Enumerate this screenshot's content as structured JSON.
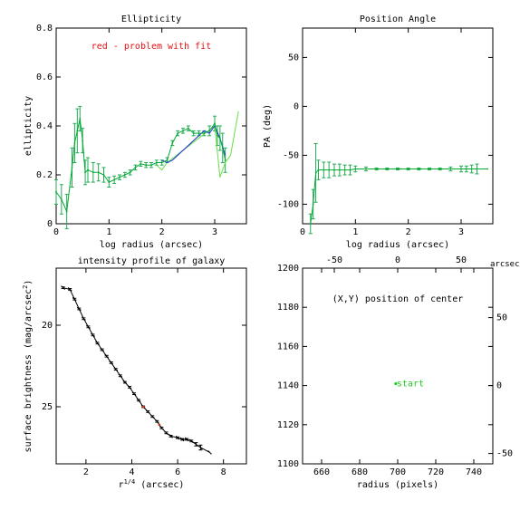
{
  "chart_data": [
    {
      "type": "line",
      "title": "Ellipticity",
      "xlabel": "log radius (arcsec)",
      "ylabel": "ellipticity",
      "xlim": [
        0,
        3.6
      ],
      "ylim": [
        0,
        0.8
      ],
      "x_ticks": [
        "0",
        "1",
        "2",
        "3"
      ],
      "y_ticks": [
        "0",
        "0.2",
        "0.4",
        "0.6",
        "0.8"
      ],
      "annotation": "red - problem with fit",
      "colors": {
        "fit": "#00aa33",
        "alt": "#2233dd",
        "extra": "#66e044",
        "problem": "#e01010",
        "error": "#22aa55"
      },
      "series": [
        {
          "x": [
            0.0,
            0.1,
            0.2,
            0.3,
            0.35,
            0.4,
            0.45,
            0.5,
            0.55,
            0.6,
            0.7,
            0.8,
            0.9,
            1.0,
            1.1,
            1.2,
            1.3,
            1.4,
            1.5,
            1.6,
            1.7,
            1.8,
            1.9,
            2.0,
            2.1,
            2.2,
            2.3,
            2.4,
            2.5,
            2.6,
            2.7,
            2.8,
            2.9,
            3.0,
            3.05,
            3.1,
            3.15,
            3.2
          ],
          "y": [
            0.13,
            0.1,
            0.05,
            0.23,
            0.33,
            0.38,
            0.43,
            0.34,
            0.21,
            0.22,
            0.21,
            0.21,
            0.2,
            0.17,
            0.18,
            0.19,
            0.2,
            0.21,
            0.23,
            0.245,
            0.24,
            0.24,
            0.25,
            0.25,
            0.26,
            0.33,
            0.37,
            0.38,
            0.39,
            0.37,
            0.37,
            0.37,
            0.38,
            0.41,
            0.36,
            0.35,
            0.31,
            0.26
          ],
          "err": [
            0.05,
            0.06,
            0.07,
            0.08,
            0.08,
            0.09,
            0.05,
            0.05,
            0.05,
            0.05,
            0.04,
            0.035,
            0.03,
            0.02,
            0.015,
            0.01,
            0.01,
            0.01,
            0.01,
            0.01,
            0.01,
            0.01,
            0.01,
            0.01,
            0.01,
            0.01,
            0.01,
            0.01,
            0.01,
            0.01,
            0.01,
            0.01,
            0.02,
            0.03,
            0.04,
            0.05,
            0.06,
            0.05
          ]
        },
        {
          "x": [
            2.0,
            2.1,
            2.2,
            2.8,
            2.9,
            3.0,
            3.1,
            3.2
          ],
          "y": [
            0.26,
            0.25,
            0.26,
            0.38,
            0.37,
            0.4,
            0.35,
            0.28
          ]
        },
        {
          "x": [
            1.9,
            2.0,
            2.1,
            3.0,
            3.1,
            3.2,
            3.3,
            3.45
          ],
          "y": [
            0.24,
            0.22,
            0.25,
            0.4,
            0.19,
            0.25,
            0.28,
            0.46
          ]
        }
      ]
    },
    {
      "type": "line",
      "title": "Position Angle",
      "xlabel": "log radius (arcsec)",
      "ylabel": "PA (deg)",
      "xlim": [
        0,
        3.6
      ],
      "ylim": [
        -120,
        80
      ],
      "x_ticks": [
        "0",
        "1",
        "2",
        "3"
      ],
      "y_ticks": [
        "-100",
        "-50",
        "0",
        "50"
      ],
      "series": [
        {
          "x": [
            0.15,
            0.2,
            0.25,
            0.3,
            0.4,
            0.5,
            0.6,
            0.7,
            0.8,
            0.9,
            1.0,
            1.2,
            1.4,
            1.6,
            1.8,
            2.0,
            2.2,
            2.4,
            2.6,
            2.8,
            3.0,
            3.1,
            3.2,
            3.3,
            3.5
          ],
          "y": [
            -120,
            -100,
            -68,
            -65,
            -65,
            -65,
            -65,
            -65,
            -65,
            -65,
            -64,
            -64,
            -64,
            -64,
            -64,
            -64,
            -64,
            -64,
            -64,
            -64,
            -64,
            -64,
            -64,
            -64,
            -64
          ],
          "err": [
            10,
            15,
            30,
            10,
            8,
            8,
            6,
            6,
            5,
            5,
            3,
            2,
            1,
            1,
            1,
            1,
            1,
            1,
            1,
            2,
            3,
            3,
            4,
            5,
            0
          ]
        }
      ]
    },
    {
      "type": "line",
      "title": "intensity profile of galaxy",
      "xlabel": "r^{1/4} (arcsec)",
      "ylabel": "surface brightness (mag/arcsec²)",
      "xlim": [
        0.7,
        9
      ],
      "ylim": [
        28.5,
        16.5
      ],
      "x_ticks": [
        "2",
        "4",
        "6",
        "8"
      ],
      "y_ticks": [
        "20",
        "25"
      ],
      "colors": {
        "fit": "#000000",
        "problem": "#cc3300"
      },
      "series": [
        {
          "x": [
            1.0,
            1.3,
            1.5,
            1.7,
            1.9,
            2.1,
            2.3,
            2.5,
            2.7,
            2.9,
            3.1,
            3.3,
            3.5,
            3.7,
            3.9,
            4.1,
            4.3,
            4.5,
            4.7,
            4.9,
            5.1,
            5.3,
            5.5,
            5.7,
            6.0,
            6.2,
            6.4,
            6.6,
            6.8,
            7.0,
            7.4
          ],
          "y": [
            17.7,
            17.8,
            18.4,
            19.0,
            19.6,
            20.1,
            20.6,
            21.1,
            21.5,
            21.9,
            22.3,
            22.7,
            23.1,
            23.5,
            23.8,
            24.2,
            24.6,
            25.0,
            25.3,
            25.6,
            25.9,
            26.3,
            26.6,
            26.8,
            26.9,
            27.0,
            27.0,
            27.1,
            27.3,
            27.5,
            27.8
          ],
          "err": [
            0.05,
            0.05,
            0.05,
            0.05,
            0.05,
            0.05,
            0.05,
            0.05,
            0.05,
            0.05,
            0.05,
            0.05,
            0.05,
            0.05,
            0.05,
            0.05,
            0.05,
            0.05,
            0.05,
            0.05,
            0.05,
            0.05,
            0.05,
            0.05,
            0.05,
            0.05,
            0.05,
            0.05,
            0.1,
            0.15,
            0
          ]
        }
      ]
    },
    {
      "type": "scatter",
      "title": "",
      "xlabel": "radius (pixels)",
      "ylabel": "",
      "xlim": [
        650,
        750
      ],
      "ylim": [
        1100,
        1200
      ],
      "x_ticks": [
        "660",
        "680",
        "700",
        "720",
        "740"
      ],
      "y_ticks": [
        "1100",
        "1120",
        "1140",
        "1160",
        "1180",
        "1200"
      ],
      "top_ticks": [
        "-50",
        "0",
        "50"
      ],
      "right_ticks": [
        "-50",
        "0",
        "50"
      ],
      "top_right_label": "arcsec",
      "annotation": "(X,Y) position of center",
      "points": [
        {
          "x": 699,
          "y": 1141,
          "label": "start"
        }
      ],
      "colors": {
        "points": "#22cc22"
      }
    }
  ]
}
